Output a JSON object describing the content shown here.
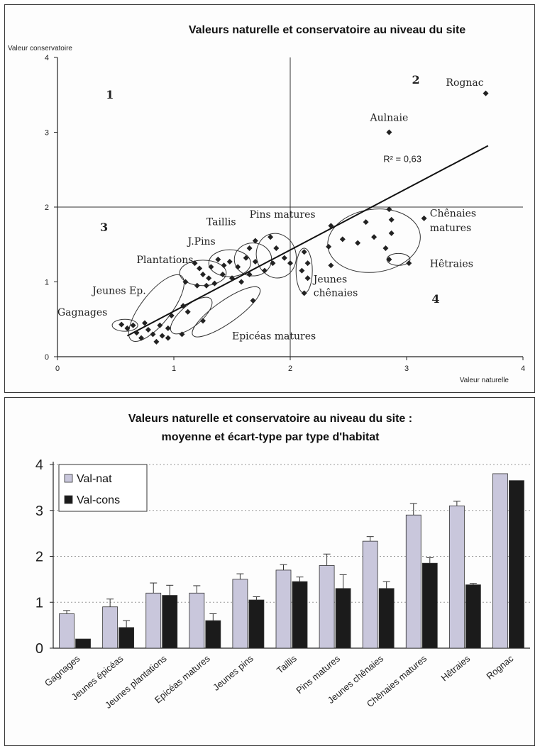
{
  "chart_data": [
    {
      "type": "scatter",
      "title": "Valeurs naturelle et conservatoire au niveau du site",
      "xlabel": "Valeur naturelle",
      "ylabel": "Valeur conservatoire",
      "xlim": [
        0,
        4
      ],
      "ylim": [
        0,
        4
      ],
      "x_ticks": [
        "0",
        "1",
        "2",
        "3",
        "4"
      ],
      "y_ticks": [
        "0",
        "1",
        "2",
        "3",
        "4"
      ],
      "reference_lines": {
        "x": 2,
        "y": 2
      },
      "regression_label": "R² = 0,63",
      "regression_line": {
        "x": [
          0.6,
          3.7
        ],
        "y": [
          0.28,
          2.82
        ]
      },
      "quadrant_labels": [
        {
          "text": "1",
          "x": 0.45,
          "y": 3.45
        },
        {
          "text": "2",
          "x": 3.08,
          "y": 3.65
        },
        {
          "text": "3",
          "x": 0.4,
          "y": 1.68
        },
        {
          "text": "4",
          "x": 3.25,
          "y": 0.72
        }
      ],
      "group_labels": [
        {
          "text": "Rognac",
          "x": 3.5,
          "y": 3.62,
          "anchor": "middle"
        },
        {
          "text": "Aulnaie",
          "x": 2.85,
          "y": 3.15,
          "anchor": "middle"
        },
        {
          "text": "Pins matures",
          "x": 1.65,
          "y": 1.86,
          "anchor": "start"
        },
        {
          "text": "Chênaies",
          "x": 3.2,
          "y": 1.87,
          "anchor": "start"
        },
        {
          "text": "matures",
          "x": 3.2,
          "y": 1.68,
          "anchor": "start"
        },
        {
          "text": "Taillis",
          "x": 1.28,
          "y": 1.76,
          "anchor": "start"
        },
        {
          "text": "J.Pins",
          "x": 1.12,
          "y": 1.5,
          "anchor": "start"
        },
        {
          "text": "Plantations",
          "x": 0.68,
          "y": 1.25,
          "anchor": "start"
        },
        {
          "text": "Hêtraies",
          "x": 3.2,
          "y": 1.2,
          "anchor": "start"
        },
        {
          "text": "Jeunes Ep.",
          "x": 0.3,
          "y": 0.84,
          "anchor": "start"
        },
        {
          "text": "Jeunes",
          "x": 2.2,
          "y": 0.99,
          "anchor": "start"
        },
        {
          "text": "chênaies",
          "x": 2.2,
          "y": 0.81,
          "anchor": "start"
        },
        {
          "text": "Gagnages",
          "x": 0.0,
          "y": 0.55,
          "anchor": "start"
        },
        {
          "text": "Epicéas matures",
          "x": 1.5,
          "y": 0.23,
          "anchor": "start"
        }
      ],
      "points": [
        {
          "x": 3.68,
          "y": 3.52
        },
        {
          "x": 2.85,
          "y": 3.0
        },
        {
          "x": 2.85,
          "y": 1.97
        },
        {
          "x": 2.87,
          "y": 1.83
        },
        {
          "x": 2.87,
          "y": 1.65
        },
        {
          "x": 2.65,
          "y": 1.8
        },
        {
          "x": 2.72,
          "y": 1.6
        },
        {
          "x": 2.82,
          "y": 1.45
        },
        {
          "x": 2.58,
          "y": 1.52
        },
        {
          "x": 2.45,
          "y": 1.57
        },
        {
          "x": 2.35,
          "y": 1.75
        },
        {
          "x": 2.33,
          "y": 1.47
        },
        {
          "x": 2.35,
          "y": 1.22
        },
        {
          "x": 3.15,
          "y": 1.85
        },
        {
          "x": 2.85,
          "y": 1.3
        },
        {
          "x": 3.02,
          "y": 1.25
        },
        {
          "x": 2.12,
          "y": 1.4
        },
        {
          "x": 2.15,
          "y": 1.25
        },
        {
          "x": 2.1,
          "y": 1.15
        },
        {
          "x": 2.15,
          "y": 1.05
        },
        {
          "x": 2.12,
          "y": 0.85
        },
        {
          "x": 1.83,
          "y": 1.6
        },
        {
          "x": 1.88,
          "y": 1.45
        },
        {
          "x": 1.95,
          "y": 1.32
        },
        {
          "x": 2.0,
          "y": 1.25
        },
        {
          "x": 1.85,
          "y": 1.25
        },
        {
          "x": 1.78,
          "y": 1.15
        },
        {
          "x": 1.7,
          "y": 1.55
        },
        {
          "x": 1.65,
          "y": 1.45
        },
        {
          "x": 1.62,
          "y": 1.32
        },
        {
          "x": 1.7,
          "y": 1.27
        },
        {
          "x": 1.55,
          "y": 1.2
        },
        {
          "x": 1.65,
          "y": 1.1
        },
        {
          "x": 1.48,
          "y": 1.27
        },
        {
          "x": 1.42,
          "y": 1.1
        },
        {
          "x": 1.5,
          "y": 1.05
        },
        {
          "x": 1.58,
          "y": 1.0
        },
        {
          "x": 1.38,
          "y": 1.3
        },
        {
          "x": 1.18,
          "y": 1.25
        },
        {
          "x": 1.22,
          "y": 1.18
        },
        {
          "x": 1.25,
          "y": 1.1
        },
        {
          "x": 1.32,
          "y": 1.2
        },
        {
          "x": 1.3,
          "y": 1.05
        },
        {
          "x": 1.35,
          "y": 0.98
        },
        {
          "x": 1.2,
          "y": 0.95
        },
        {
          "x": 1.1,
          "y": 1.0
        },
        {
          "x": 1.43,
          "y": 1.22
        },
        {
          "x": 1.28,
          "y": 0.95
        },
        {
          "x": 1.68,
          "y": 0.75
        },
        {
          "x": 1.08,
          "y": 0.68
        },
        {
          "x": 1.12,
          "y": 0.6
        },
        {
          "x": 0.98,
          "y": 0.55
        },
        {
          "x": 1.25,
          "y": 0.48
        },
        {
          "x": 1.07,
          "y": 0.3
        },
        {
          "x": 0.95,
          "y": 0.38
        },
        {
          "x": 0.88,
          "y": 0.42
        },
        {
          "x": 0.82,
          "y": 0.3
        },
        {
          "x": 0.9,
          "y": 0.28
        },
        {
          "x": 0.78,
          "y": 0.36
        },
        {
          "x": 0.72,
          "y": 0.25
        },
        {
          "x": 0.85,
          "y": 0.2
        },
        {
          "x": 0.95,
          "y": 0.25
        },
        {
          "x": 0.65,
          "y": 0.42
        },
        {
          "x": 0.6,
          "y": 0.38
        },
        {
          "x": 0.55,
          "y": 0.43
        },
        {
          "x": 0.75,
          "y": 0.45
        },
        {
          "x": 0.68,
          "y": 0.32
        }
      ],
      "grid": false
    },
    {
      "type": "bar",
      "title": "Valeurs naturelle et conservatoire au niveau du site :",
      "subtitle": "moyenne et écart-type par type d'habitat",
      "categories": [
        "Gagnages",
        "Jeunes épicéas",
        "Jeunes plantations",
        "Epicéas matures",
        "Jeunes pins",
        "Taillis",
        "Pins matures",
        "Jeunes chênaies",
        "Chênaies matures",
        "Hêtraies",
        "Rognac"
      ],
      "series": [
        {
          "name": "Val-nat",
          "color": "#c9c7dc",
          "values": [
            0.75,
            0.9,
            1.2,
            1.2,
            1.5,
            1.7,
            1.8,
            2.33,
            2.9,
            3.1,
            3.8
          ],
          "errors": [
            0.07,
            0.17,
            0.22,
            0.16,
            0.12,
            0.12,
            0.25,
            0.1,
            0.25,
            0.1,
            0
          ]
        },
        {
          "name": "Val-cons",
          "color": "#1b1b1b",
          "values": [
            0.2,
            0.45,
            1.15,
            0.6,
            1.05,
            1.45,
            1.3,
            1.3,
            1.85,
            1.38,
            3.65
          ],
          "errors": [
            0,
            0.15,
            0.22,
            0.15,
            0.07,
            0.1,
            0.3,
            0.15,
            0.12,
            0.03,
            0
          ]
        }
      ],
      "ylim": [
        0,
        4
      ],
      "y_ticks": [
        "0",
        "1",
        "2",
        "3",
        "4"
      ],
      "legend_position": "top-left",
      "grid": true
    }
  ]
}
